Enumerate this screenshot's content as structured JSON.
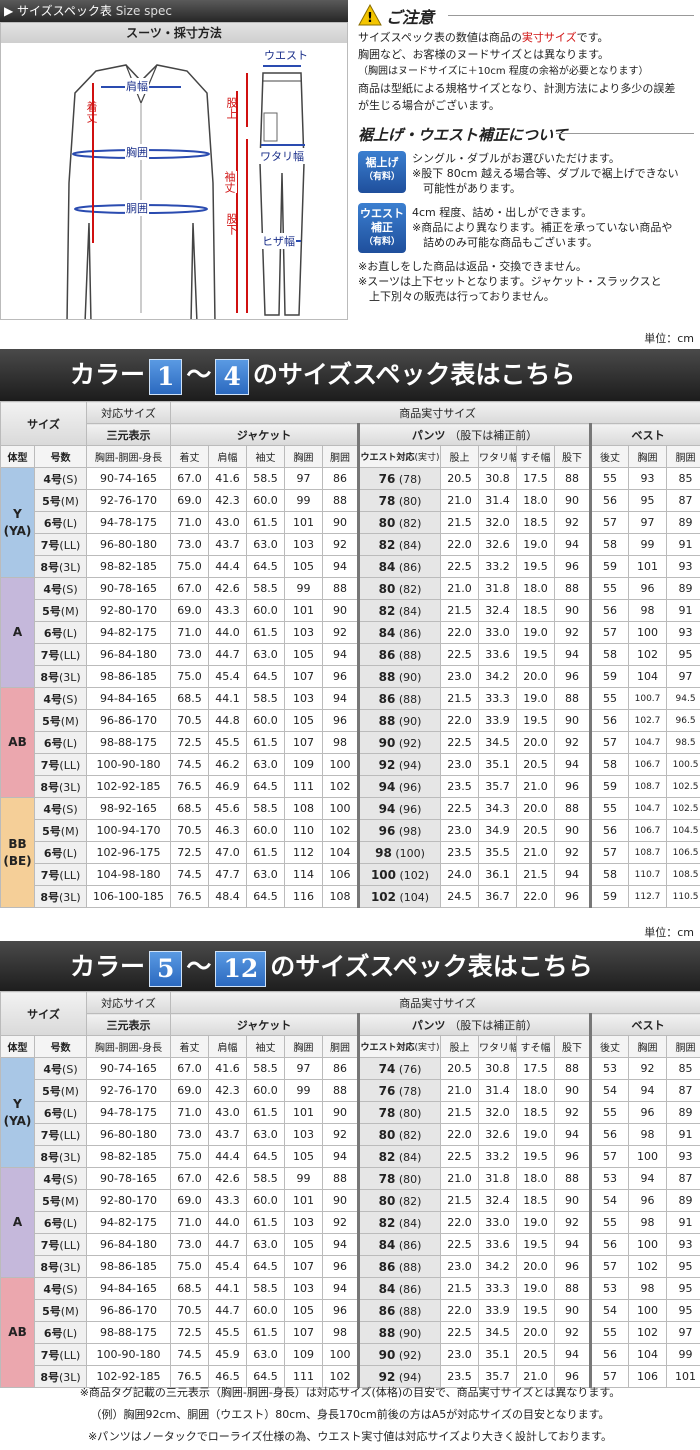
{
  "header": {
    "title": "サイズスペック表",
    "title_en": "Size spec"
  },
  "diagram": {
    "title": "スーツ・採寸方法",
    "labels": {
      "katahaba": "肩幅",
      "kitake": "着丈",
      "munei": "胸囲",
      "doui": "胴囲",
      "sodetake": "袖丈",
      "waist": "ウエスト",
      "mataue": "股上",
      "watari": "ワタリ幅",
      "matashita": "股下",
      "hizahaba": "ヒザ幅"
    }
  },
  "notice": {
    "title": "ご注意",
    "lines": [
      "サイズスペック表の数値は商品の",
      "実寸サイズ",
      "です。",
      "胸囲など、お客様のヌードサイズとは異なります。",
      "（胸囲はヌードサイズに＋10cm 程度の余裕が必要となります）",
      "商品は型紙による規格サイズとなり、計測方法により多少の誤差",
      "が生じる場合がございます。"
    ]
  },
  "correction": {
    "title": "裾上げ・ウエスト補正について",
    "badge1": [
      "裾上げ",
      "（有料）"
    ],
    "text1": [
      "シングル・ダブルがお選びいただけます。",
      "※股下 80cm 越える場合等、ダブルで裾上げできない",
      "　可能性があります。"
    ],
    "badge2": [
      "ウエスト",
      "補正",
      "（有料）"
    ],
    "text2": [
      "4cm 程度、詰め・出しができます。",
      "※商品により異なります。補正を承っていない商品や",
      "　詰めのみ可能な商品もございます。"
    ],
    "notes": [
      "※お直しをした商品は返品・交換できません。",
      "※スーツは上下セットとなります。ジャケット・スラックスと",
      "　上下別々の販売は行っておりません。"
    ]
  },
  "unit": "単位：cm",
  "banner1": {
    "pre": "カラー",
    "n1": "1",
    "tilde": "～",
    "n2": "4",
    "post": "のサイズスペック表はこちら"
  },
  "banner2": {
    "pre": "カラー",
    "n1": "5",
    "tilde": "～",
    "n2": "12",
    "post": "のサイズスペック表はこちら"
  },
  "headers": {
    "size": "サイズ",
    "taiou": "対応サイズ",
    "jissun": "商品実寸サイズ",
    "sangen": "三元表示",
    "jacket": "ジャケット",
    "pants": "パンツ",
    "pants_note": "（股下は補正前）",
    "vest": "ベスト",
    "taikei": "体型",
    "gousu": "号数",
    "sangen_sub": "胸囲-胴囲-身長",
    "cols": [
      "着丈",
      "肩幅",
      "袖丈",
      "胸囲",
      "胴囲"
    ],
    "waist_col": "ウエスト対応",
    "waist_col2": "(実寸)",
    "pcols": [
      "股上",
      "ワタリ幅",
      "すそ幅",
      "股下"
    ],
    "vcols": [
      "後丈",
      "胸囲",
      "胴囲"
    ]
  },
  "table1": [
    {
      "type": "Y\n(YA)",
      "cls": "gy",
      "rows": [
        [
          "4号",
          "(S)",
          "90-74-165",
          "67.0",
          "41.6",
          "58.5",
          "97",
          "86",
          "76",
          "(78)",
          "20.5",
          "30.8",
          "17.5",
          "88",
          "55",
          "93",
          "85"
        ],
        [
          "5号",
          "(M)",
          "92-76-170",
          "69.0",
          "42.3",
          "60.0",
          "99",
          "88",
          "78",
          "(80)",
          "21.0",
          "31.4",
          "18.0",
          "90",
          "56",
          "95",
          "87"
        ],
        [
          "6号",
          "(L)",
          "94-78-175",
          "71.0",
          "43.0",
          "61.5",
          "101",
          "90",
          "80",
          "(82)",
          "21.5",
          "32.0",
          "18.5",
          "92",
          "57",
          "97",
          "89"
        ],
        [
          "7号",
          "(LL)",
          "96-80-180",
          "73.0",
          "43.7",
          "63.0",
          "103",
          "92",
          "82",
          "(84)",
          "22.0",
          "32.6",
          "19.0",
          "94",
          "58",
          "99",
          "91"
        ],
        [
          "8号",
          "(3L)",
          "98-82-185",
          "75.0",
          "44.4",
          "64.5",
          "105",
          "94",
          "84",
          "(86)",
          "22.5",
          "33.2",
          "19.5",
          "96",
          "59",
          "101",
          "93"
        ]
      ]
    },
    {
      "type": "A",
      "cls": "ga",
      "rows": [
        [
          "4号",
          "(S)",
          "90-78-165",
          "67.0",
          "42.6",
          "58.5",
          "99",
          "88",
          "80",
          "(82)",
          "21.0",
          "31.8",
          "18.0",
          "88",
          "55",
          "96",
          "89"
        ],
        [
          "5号",
          "(M)",
          "92-80-170",
          "69.0",
          "43.3",
          "60.0",
          "101",
          "90",
          "82",
          "(84)",
          "21.5",
          "32.4",
          "18.5",
          "90",
          "56",
          "98",
          "91"
        ],
        [
          "6号",
          "(L)",
          "94-82-175",
          "71.0",
          "44.0",
          "61.5",
          "103",
          "92",
          "84",
          "(86)",
          "22.0",
          "33.0",
          "19.0",
          "92",
          "57",
          "100",
          "93"
        ],
        [
          "7号",
          "(LL)",
          "96-84-180",
          "73.0",
          "44.7",
          "63.0",
          "105",
          "94",
          "86",
          "(88)",
          "22.5",
          "33.6",
          "19.5",
          "94",
          "58",
          "102",
          "95"
        ],
        [
          "8号",
          "(3L)",
          "98-86-185",
          "75.0",
          "45.4",
          "64.5",
          "107",
          "96",
          "88",
          "(90)",
          "23.0",
          "34.2",
          "20.0",
          "96",
          "59",
          "104",
          "97"
        ]
      ]
    },
    {
      "type": "AB",
      "cls": "gab",
      "rows": [
        [
          "4号",
          "(S)",
          "94-84-165",
          "68.5",
          "44.1",
          "58.5",
          "103",
          "94",
          "86",
          "(88)",
          "21.5",
          "33.3",
          "19.0",
          "88",
          "55",
          "100.7",
          "94.5"
        ],
        [
          "5号",
          "(M)",
          "96-86-170",
          "70.5",
          "44.8",
          "60.0",
          "105",
          "96",
          "88",
          "(90)",
          "22.0",
          "33.9",
          "19.5",
          "90",
          "56",
          "102.7",
          "96.5"
        ],
        [
          "6号",
          "(L)",
          "98-88-175",
          "72.5",
          "45.5",
          "61.5",
          "107",
          "98",
          "90",
          "(92)",
          "22.5",
          "34.5",
          "20.0",
          "92",
          "57",
          "104.7",
          "98.5"
        ],
        [
          "7号",
          "(LL)",
          "100-90-180",
          "74.5",
          "46.2",
          "63.0",
          "109",
          "100",
          "92",
          "(94)",
          "23.0",
          "35.1",
          "20.5",
          "94",
          "58",
          "106.7",
          "100.5"
        ],
        [
          "8号",
          "(3L)",
          "102-92-185",
          "76.5",
          "46.9",
          "64.5",
          "111",
          "102",
          "94",
          "(96)",
          "23.5",
          "35.7",
          "21.0",
          "96",
          "59",
          "108.7",
          "102.5"
        ]
      ]
    },
    {
      "type": "BB\n(BE)",
      "cls": "gbb",
      "rows": [
        [
          "4号",
          "(S)",
          "98-92-165",
          "68.5",
          "45.6",
          "58.5",
          "108",
          "100",
          "94",
          "(96)",
          "22.5",
          "34.3",
          "20.0",
          "88",
          "55",
          "104.7",
          "102.5"
        ],
        [
          "5号",
          "(M)",
          "100-94-170",
          "70.5",
          "46.3",
          "60.0",
          "110",
          "102",
          "96",
          "(98)",
          "23.0",
          "34.9",
          "20.5",
          "90",
          "56",
          "106.7",
          "104.5"
        ],
        [
          "6号",
          "(L)",
          "102-96-175",
          "72.5",
          "47.0",
          "61.5",
          "112",
          "104",
          "98",
          "(100)",
          "23.5",
          "35.5",
          "21.0",
          "92",
          "57",
          "108.7",
          "106.5"
        ],
        [
          "7号",
          "(LL)",
          "104-98-180",
          "74.5",
          "47.7",
          "63.0",
          "114",
          "106",
          "100",
          "(102)",
          "24.0",
          "36.1",
          "21.5",
          "94",
          "58",
          "110.7",
          "108.5"
        ],
        [
          "8号",
          "(3L)",
          "106-100-185",
          "76.5",
          "48.4",
          "64.5",
          "116",
          "108",
          "102",
          "(104)",
          "24.5",
          "36.7",
          "22.0",
          "96",
          "59",
          "112.7",
          "110.5"
        ]
      ]
    }
  ],
  "table2": [
    {
      "type": "Y\n(YA)",
      "cls": "gy",
      "rows": [
        [
          "4号",
          "(S)",
          "90-74-165",
          "67.0",
          "41.6",
          "58.5",
          "97",
          "86",
          "74",
          "(76)",
          "20.5",
          "30.8",
          "17.5",
          "88",
          "53",
          "92",
          "85"
        ],
        [
          "5号",
          "(M)",
          "92-76-170",
          "69.0",
          "42.3",
          "60.0",
          "99",
          "88",
          "76",
          "(78)",
          "21.0",
          "31.4",
          "18.0",
          "90",
          "54",
          "94",
          "87"
        ],
        [
          "6号",
          "(L)",
          "94-78-175",
          "71.0",
          "43.0",
          "61.5",
          "101",
          "90",
          "78",
          "(80)",
          "21.5",
          "32.0",
          "18.5",
          "92",
          "55",
          "96",
          "89"
        ],
        [
          "7号",
          "(LL)",
          "96-80-180",
          "73.0",
          "43.7",
          "63.0",
          "103",
          "92",
          "80",
          "(82)",
          "22.0",
          "32.6",
          "19.0",
          "94",
          "56",
          "98",
          "91"
        ],
        [
          "8号",
          "(3L)",
          "98-82-185",
          "75.0",
          "44.4",
          "64.5",
          "105",
          "94",
          "82",
          "(84)",
          "22.5",
          "33.2",
          "19.5",
          "96",
          "57",
          "100",
          "93"
        ]
      ]
    },
    {
      "type": "A",
      "cls": "ga",
      "rows": [
        [
          "4号",
          "(S)",
          "90-78-165",
          "67.0",
          "42.6",
          "58.5",
          "99",
          "88",
          "78",
          "(80)",
          "21.0",
          "31.8",
          "18.0",
          "88",
          "53",
          "94",
          "87"
        ],
        [
          "5号",
          "(M)",
          "92-80-170",
          "69.0",
          "43.3",
          "60.0",
          "101",
          "90",
          "80",
          "(82)",
          "21.5",
          "32.4",
          "18.5",
          "90",
          "54",
          "96",
          "89"
        ],
        [
          "6号",
          "(L)",
          "94-82-175",
          "71.0",
          "44.0",
          "61.5",
          "103",
          "92",
          "82",
          "(84)",
          "22.0",
          "33.0",
          "19.0",
          "92",
          "55",
          "98",
          "91"
        ],
        [
          "7号",
          "(LL)",
          "96-84-180",
          "73.0",
          "44.7",
          "63.0",
          "105",
          "94",
          "84",
          "(86)",
          "22.5",
          "33.6",
          "19.5",
          "94",
          "56",
          "100",
          "93"
        ],
        [
          "8号",
          "(3L)",
          "98-86-185",
          "75.0",
          "45.4",
          "64.5",
          "107",
          "96",
          "86",
          "(88)",
          "23.0",
          "34.2",
          "20.0",
          "96",
          "57",
          "102",
          "95"
        ]
      ]
    },
    {
      "type": "AB",
      "cls": "gab",
      "rows": [
        [
          "4号",
          "(S)",
          "94-84-165",
          "68.5",
          "44.1",
          "58.5",
          "103",
          "94",
          "84",
          "(86)",
          "21.5",
          "33.3",
          "19.0",
          "88",
          "53",
          "98",
          "95"
        ],
        [
          "5号",
          "(M)",
          "96-86-170",
          "70.5",
          "44.7",
          "60.0",
          "105",
          "96",
          "86",
          "(88)",
          "22.0",
          "33.9",
          "19.5",
          "90",
          "54",
          "100",
          "95"
        ],
        [
          "6号",
          "(L)",
          "98-88-175",
          "72.5",
          "45.5",
          "61.5",
          "107",
          "98",
          "88",
          "(90)",
          "22.5",
          "34.5",
          "20.0",
          "92",
          "55",
          "102",
          "97"
        ],
        [
          "7号",
          "(LL)",
          "100-90-180",
          "74.5",
          "45.9",
          "63.0",
          "109",
          "100",
          "90",
          "(92)",
          "23.0",
          "35.1",
          "20.5",
          "94",
          "56",
          "104",
          "99"
        ],
        [
          "8号",
          "(3L)",
          "102-92-185",
          "76.5",
          "46.5",
          "64.5",
          "111",
          "102",
          "92",
          "(94)",
          "23.5",
          "35.7",
          "21.0",
          "96",
          "57",
          "106",
          "101"
        ]
      ]
    }
  ],
  "footer": [
    "※商品タグ記載の三元表示（胸囲-胴囲-身長）は対応サイズ(体格)の目安で、商品実寸サイズとは異なります。",
    "（例）胸囲92cm、胴囲（ウエスト）80cm、身長170cm前後の方はA5が対応サイズの目安となります。",
    "※パンツはノータックでローライズ仕様の為、ウエスト実寸値は対応サイズより大きく設計しております。"
  ]
}
